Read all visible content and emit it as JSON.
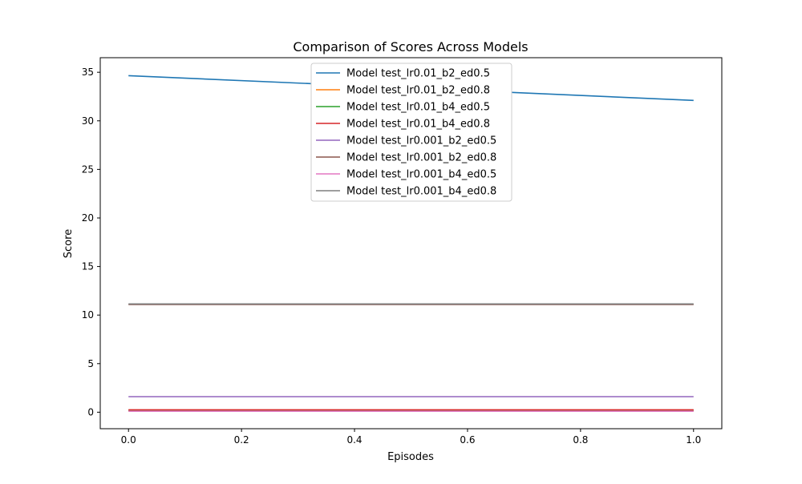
{
  "chart_data": {
    "type": "line",
    "title": "Comparison of Scores Across Models",
    "xlabel": "Episodes",
    "ylabel": "Score",
    "xlim": [
      -0.05,
      1.05
    ],
    "ylim": [
      -1.7,
      36.5
    ],
    "xticks": [
      0.0,
      0.2,
      0.4,
      0.6,
      0.8,
      1.0
    ],
    "xtick_labels": [
      "0.0",
      "0.2",
      "0.4",
      "0.6",
      "0.8",
      "1.0"
    ],
    "yticks": [
      0,
      5,
      10,
      15,
      20,
      25,
      30,
      35
    ],
    "ytick_labels": [
      "0",
      "5",
      "10",
      "15",
      "20",
      "25",
      "30",
      "35"
    ],
    "grid": false,
    "legend_position": "top-center",
    "x": [
      0,
      1
    ],
    "series": [
      {
        "name": "Model test_lr0.01_b2_ed0.5",
        "values": [
          34.65,
          32.1
        ],
        "color": "#1f77b4"
      },
      {
        "name": "Model test_lr0.01_b2_ed0.8",
        "values": [
          0.15,
          0.15
        ],
        "color": "#ff7f0e"
      },
      {
        "name": "Model test_lr0.01_b4_ed0.5",
        "values": [
          0.2,
          0.2
        ],
        "color": "#2ca02c"
      },
      {
        "name": "Model test_lr0.01_b4_ed0.8",
        "values": [
          0.25,
          0.25
        ],
        "color": "#d62728"
      },
      {
        "name": "Model test_lr0.001_b2_ed0.5",
        "values": [
          1.6,
          1.6
        ],
        "color": "#9467bd"
      },
      {
        "name": "Model test_lr0.001_b2_ed0.8",
        "values": [
          11.1,
          11.1
        ],
        "color": "#8c564b"
      },
      {
        "name": "Model test_lr0.001_b4_ed0.5",
        "values": [
          0.1,
          0.1
        ],
        "color": "#e377c2"
      },
      {
        "name": "Model test_lr0.001_b4_ed0.8",
        "values": [
          11.15,
          11.15
        ],
        "color": "#7f7f7f"
      }
    ]
  }
}
